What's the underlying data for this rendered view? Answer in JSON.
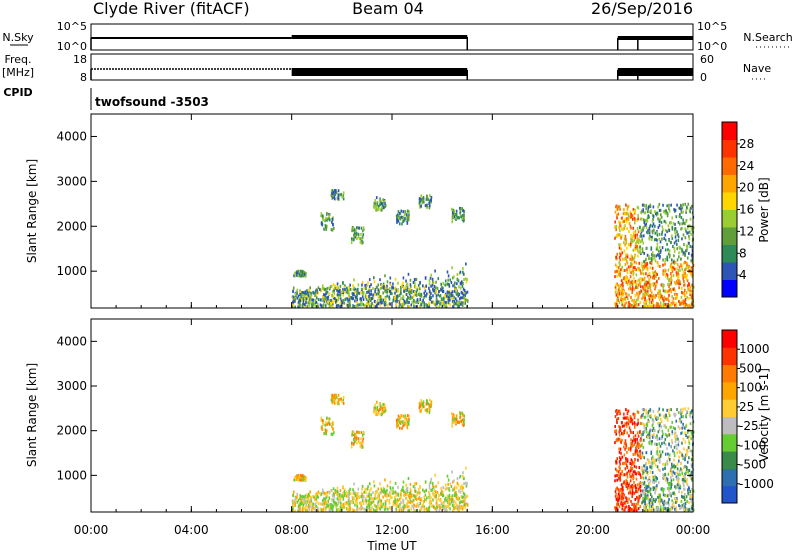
{
  "header": {
    "title": "Clyde River (fitACF)",
    "beam": "Beam 04",
    "date": "26/Sep/2016"
  },
  "summary_panels": {
    "nsky": {
      "label": "N.Sky",
      "ticks_left": [
        "10^5",
        "10^0"
      ],
      "right_label": "N.Search",
      "ticks_right": [
        "10^5",
        "10^0"
      ]
    },
    "freq": {
      "label_top": "Freq.",
      "label_bottom": "[MHz]",
      "ticks_left": [
        "18",
        "8"
      ],
      "right_label": "Nave",
      "ticks_right": [
        "60",
        "0"
      ]
    },
    "cpid": {
      "label": "CPID",
      "value": "twofsound -3503"
    }
  },
  "colors": {
    "power_scale": [
      "#0000ff",
      "#2d55b5",
      "#2e8b57",
      "#5f9e3a",
      "#9acd32",
      "#ffd700",
      "#ffa500",
      "#ff6a00",
      "#ff3300",
      "#ff0000"
    ],
    "velocity_scale": [
      "#2255cc",
      "#2d6fb0",
      "#3a8a4a",
      "#66cc33",
      "#bdbdbd",
      "#ffcc33",
      "#ffa500",
      "#ff7a00",
      "#ff3300",
      "#ff0000"
    ]
  },
  "chart_data": [
    {
      "type": "heatmap",
      "name": "power",
      "ylabel": "Slant Range [km]",
      "yticks": [
        "1000",
        "2000",
        "3000",
        "4000"
      ],
      "ylim": [
        180,
        4500
      ],
      "colorbar_label": "Power [dB]",
      "colorbar_ticks": [
        "4",
        "8",
        "12",
        "16",
        "20",
        "24",
        "28"
      ],
      "clim": [
        0,
        32
      ]
    },
    {
      "type": "heatmap",
      "name": "velocity",
      "xlabel": "Time UT",
      "xticks": [
        "00:00",
        "04:00",
        "08:00",
        "12:00",
        "16:00",
        "20:00",
        "00:00"
      ],
      "xlim": [
        0,
        24
      ],
      "ylabel": "Slant Range [km]",
      "yticks": [
        "1000",
        "2000",
        "3000",
        "4000"
      ],
      "ylim": [
        180,
        4500
      ],
      "colorbar_label": "Velocity [m s-1]",
      "colorbar_ticks": [
        "1000",
        "500",
        "100",
        "25",
        "-25",
        "-100",
        "-500",
        "-1000"
      ]
    }
  ]
}
